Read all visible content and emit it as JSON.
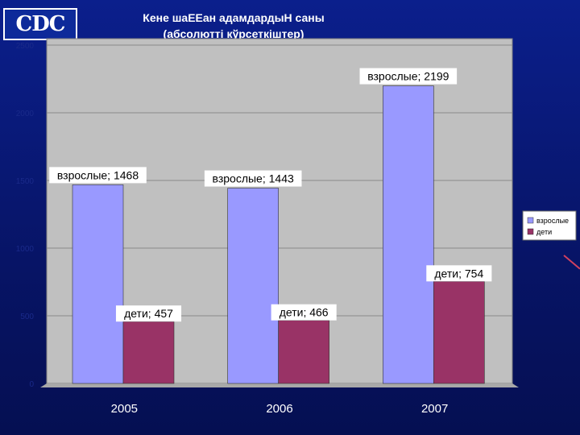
{
  "logo": {
    "text": "CDC"
  },
  "chart_data": {
    "type": "bar",
    "title": "Кене шаЕЕан адамдардыН саны",
    "subtitle": "(абсолютті кўрсеткіштер)",
    "categories": [
      "2005",
      "2006",
      "2007"
    ],
    "series": [
      {
        "name": "взрослые",
        "values": [
          1468,
          1443,
          2199
        ],
        "color": "#9999ff",
        "labels": [
          "взрослые; 1468",
          "взрослые; 1443",
          "взрослые; 2199"
        ]
      },
      {
        "name": "дети",
        "values": [
          457,
          466,
          754
        ],
        "color": "#993366",
        "labels": [
          "дети; 457",
          "дети; 466",
          "дети; 754"
        ]
      }
    ],
    "ylim": [
      0,
      2500
    ],
    "yticks": [
      "0",
      "500",
      "1000",
      "1500",
      "2000",
      "2500"
    ],
    "grid": true,
    "legend": "right"
  },
  "colors": {
    "plot_bg": "#c0c0c0",
    "slide_bg": "#0a1a7a"
  }
}
